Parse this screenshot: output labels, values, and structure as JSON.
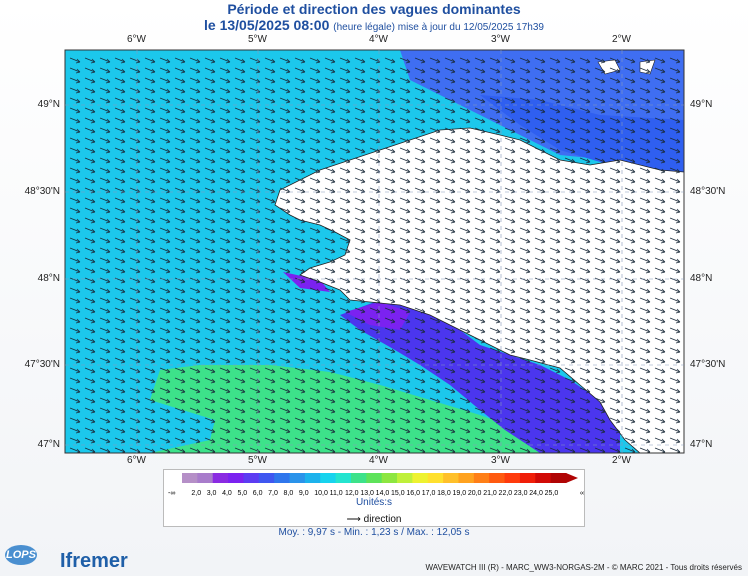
{
  "title": "Période et direction des vagues dominantes",
  "subtitle_main": "le 13/05/2025 08:00",
  "subtitle_note": "(heure légale) mise à jour du 12/05/2025 17h39",
  "lon_labels": [
    "6°W",
    "5°W",
    "4°W",
    "3°W",
    "2°W"
  ],
  "lat_labels": [
    "49°N",
    "48°30'N",
    "48°N",
    "47°30'N",
    "47°N"
  ],
  "legend": {
    "ticks": [
      "2,0",
      "3,0",
      "4,0",
      "5,0",
      "6,0",
      "7,0",
      "8,0",
      "9,0",
      "10,0",
      "11,0",
      "12,0",
      "13,0",
      "14,0",
      "15,0",
      "16,0",
      "17,0",
      "18,0",
      "19,0",
      "20,0",
      "21,0",
      "22,0",
      "23,0",
      "24,0",
      "25,0"
    ],
    "low_end": "-∞",
    "high_end": "∞",
    "colors": [
      "#b58fc7",
      "#a87ccb",
      "#8a2be2",
      "#7b22f0",
      "#5c3cf2",
      "#3f57f0",
      "#2f76ec",
      "#2a93ea",
      "#1cb2ec",
      "#17d3ee",
      "#24e4cf",
      "#3de28a",
      "#5ee35a",
      "#8de640",
      "#bff03a",
      "#eef230",
      "#ffe02e",
      "#ffc02a",
      "#ffa21f",
      "#ff7f17",
      "#ff5a10",
      "#ff3b0c",
      "#f01e08",
      "#d10a06",
      "#b00404"
    ],
    "unit_label": "Unités:s",
    "direction_label": "direction"
  },
  "stats": "Moy. : 9,97 s   -   Min. : 1,23 s / Max. : 12,05 s",
  "credit": "WAVEWATCH III (R) - MARC_WW3-NORGAS-2M - © MARC 2021 - Tous droits réservés",
  "logos": {
    "lops": "LOPS",
    "ifremer": "Ifremer"
  }
}
